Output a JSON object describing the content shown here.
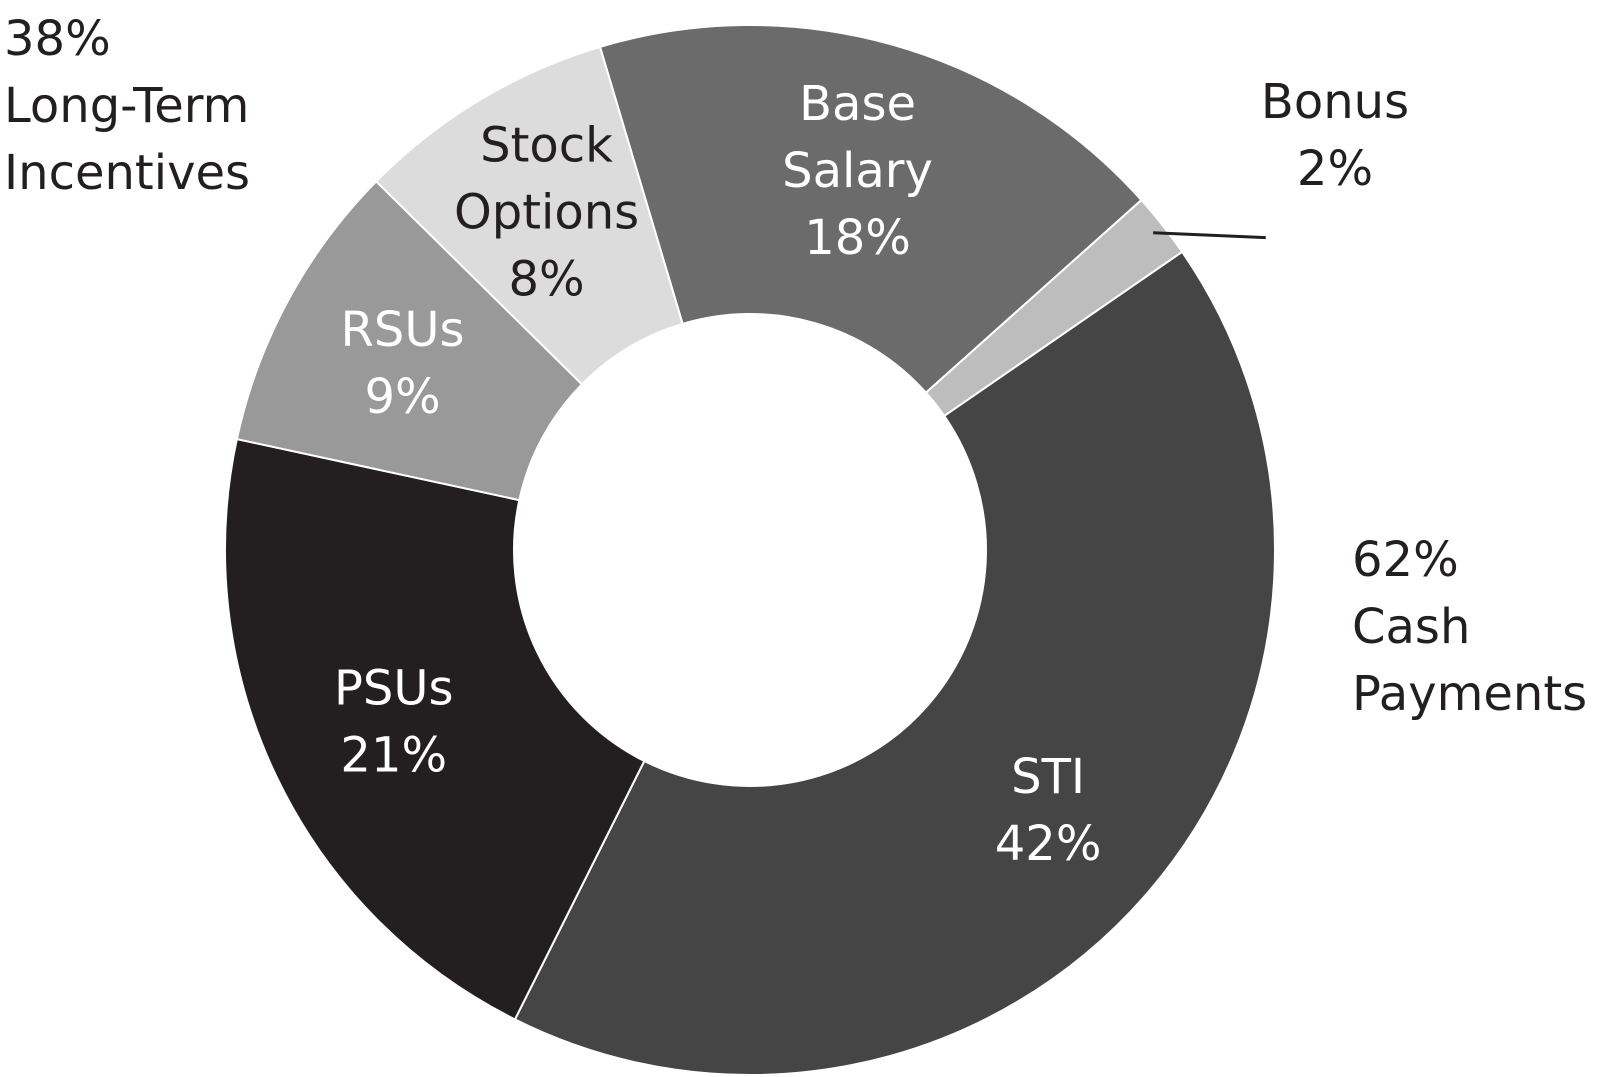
{
  "chart_data": {
    "type": "pie",
    "donut": true,
    "legend": "none",
    "slices": [
      {
        "name": "Base Salary",
        "label_lines": [
          "Base",
          "Salary"
        ],
        "value": 18,
        "value_label": "18%",
        "color": "#6b6b6b",
        "text_color": "#ffffff"
      },
      {
        "name": "Bonus",
        "label_lines": [
          "Bonus"
        ],
        "value": 2,
        "value_label": "2%",
        "color": "#bdbdbd",
        "text_color": "#231f20",
        "external": true
      },
      {
        "name": "STI",
        "label_lines": [
          "STI"
        ],
        "value": 42,
        "value_label": "42%",
        "color": "#454545",
        "text_color": "#ffffff"
      },
      {
        "name": "PSUs",
        "label_lines": [
          "PSUs"
        ],
        "value": 21,
        "value_label": "21%",
        "color": "#231f20",
        "text_color": "#ffffff"
      },
      {
        "name": "RSUs",
        "label_lines": [
          "RSUs"
        ],
        "value": 9,
        "value_label": "9%",
        "color": "#999999",
        "text_color": "#ffffff"
      },
      {
        "name": "Stock Options",
        "label_lines": [
          "Stock",
          "Options"
        ],
        "value": 8,
        "value_label": "8%",
        "color": "#dcdcdc",
        "text_color": "#231f20"
      }
    ],
    "groups": [
      {
        "percent": "38%",
        "lines": [
          "Long-Term",
          "Incentives"
        ],
        "members": [
          "PSUs",
          "RSUs",
          "Stock Options"
        ]
      },
      {
        "percent": "62%",
        "lines": [
          "Cash",
          "Payments"
        ],
        "members": [
          "Base Salary",
          "Bonus",
          "STI"
        ]
      }
    ]
  }
}
